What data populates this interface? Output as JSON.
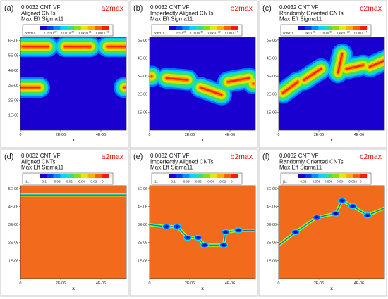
{
  "chart_data": [
    {
      "panel": "(a)",
      "type": "heatmap",
      "row": "top",
      "title_lines": [
        "0.0032 CNT VF",
        "Aligned CNTs",
        "Max Eff Sigma11"
      ],
      "tag": "a2max",
      "legend": {
        "variable": "cond11",
        "labels": [
          "1.0x10^(-37)",
          "1.0x10^(-29)",
          "1.0x10^(-21)",
          "1.0x10^(-13)"
        ]
      },
      "xlabel": "x",
      "x_ticks": [
        "0",
        "2E-06",
        "4E-06"
      ],
      "y_ticks": [
        "1E-06",
        "2E-06",
        "3E-06",
        "4E-06",
        "5E-06",
        "6E-06"
      ],
      "xlim": [
        0,
        5e-06
      ],
      "ylim": [
        0,
        5e-06
      ],
      "cnt_paths": [
        [
          [
            1e-07,
            4.5e-06
          ],
          [
            1.3e-06,
            4.5e-06
          ]
        ],
        [
          [
            2.1e-06,
            4.5e-06
          ],
          [
            3.3e-06,
            4.5e-06
          ]
        ],
        [
          [
            4.1e-06,
            4.5e-06
          ],
          [
            5.3e-06,
            4.5e-06
          ]
        ],
        [
          [
            -2e-07,
            2.3e-06
          ],
          [
            9e-07,
            2.3e-06
          ]
        ],
        [
          [
            4.9e-06,
            2.3e-06
          ],
          [
            6e-06,
            2.3e-06
          ]
        ]
      ]
    },
    {
      "panel": "(b)",
      "type": "heatmap",
      "row": "top",
      "title_lines": [
        "0.0032 CNT VF",
        "Imperfectly Aligned CNTs",
        "Max Eff Sigma11"
      ],
      "tag": "b2max",
      "legend": {
        "variable": "cond11",
        "labels": [
          "1.0x10^(-38)",
          "1.0x10^(-30)",
          "1.0x10^(-22)",
          "1.0x10^(-14)"
        ]
      },
      "xlabel": "x",
      "x_ticks": [
        "0",
        "2E-06",
        "4E-06"
      ],
      "y_ticks": [
        "1E-06",
        "2E-06",
        "3E-06",
        "4E-06",
        "5E-06"
      ],
      "xlim": [
        0,
        5e-06
      ],
      "ylim": [
        0,
        5e-06
      ],
      "cnt_paths": [
        [
          [
            1e-07,
            2.9e-06
          ],
          [
            1e-07,
            2.9e-06
          ]
        ],
        [
          [
            8e-07,
            2.8e-06
          ],
          [
            1.8e-06,
            2.7e-06
          ]
        ],
        [
          [
            2.4e-06,
            2.3e-06
          ],
          [
            3.4e-06,
            1.9e-06
          ]
        ],
        [
          [
            3.7e-06,
            2.6e-06
          ],
          [
            4.7e-06,
            2.8e-06
          ]
        ],
        [
          [
            4.9e-06,
            2.5e-06
          ],
          [
            4.9e-06,
            2.5e-06
          ]
        ]
      ]
    },
    {
      "panel": "(c)",
      "type": "heatmap",
      "row": "top",
      "title_lines": [
        "0.0032 CNT VF",
        "Randomly Oriented CNTs",
        "Max Eff Sigma11"
      ],
      "tag": "c2max",
      "legend": {
        "variable": "cond11",
        "labels": [
          "1.0x10^(-38)",
          "1.0x10^(-30)",
          "1.0x10^(-22)",
          "1.0x10^(-14)"
        ]
      },
      "xlabel": "x",
      "x_ticks": [
        "0",
        "2E-06",
        "4E-06"
      ],
      "y_ticks": [
        "1E-06",
        "2E-06",
        "3E-06",
        "4E-06",
        "5E-06"
      ],
      "xlim": [
        0,
        5e-06
      ],
      "ylim": [
        0,
        5e-06
      ],
      "cnt_paths": [
        [
          [
            2e-07,
            2e-06
          ],
          [
            9e-07,
            2.6e-06
          ]
        ],
        [
          [
            1.2e-06,
            2.7e-06
          ],
          [
            2e-06,
            3.3e-06
          ]
        ],
        [
          [
            2.8e-06,
            3.1e-06
          ],
          [
            3e-06,
            4.1e-06
          ]
        ],
        [
          [
            3.2e-06,
            3.3e-06
          ],
          [
            4e-06,
            3.5e-06
          ]
        ],
        [
          [
            4.3e-06,
            3.4e-06
          ],
          [
            5.1e-06,
            3.8e-06
          ]
        ]
      ]
    },
    {
      "panel": "(d)",
      "type": "heatmap",
      "row": "bottom",
      "title_lines": [
        "0.0032 CNT VF",
        "Aligned CNTs",
        "Max Eff Sigma11"
      ],
      "tag": "a2max",
      "legend": {
        "variable": "j11",
        "labels": [
          "-0.1",
          "-0.08",
          "-0.06",
          "-0.04",
          "-0.02",
          "0"
        ]
      },
      "xlabel": "x",
      "x_ticks": [
        "0",
        "2E-06",
        "4E-06"
      ],
      "y_ticks": [
        "1E-06",
        "2E-06",
        "3E-06",
        "4E-06",
        "5E-06"
      ],
      "xlim": [
        0,
        5e-06
      ],
      "ylim": [
        0,
        5e-06
      ],
      "background_color": "#f26b1d",
      "cnt_paths": [
        [
          [
            0,
            4.5e-06
          ],
          [
            5e-06,
            4.5e-06
          ]
        ]
      ]
    },
    {
      "panel": "(e)",
      "type": "heatmap",
      "row": "bottom",
      "title_lines": [
        "0.0032 CNT VF",
        "Imperfectly Aligned CNTs",
        "Max Eff Sigma11"
      ],
      "tag": "b2max",
      "legend": {
        "variable": "j11",
        "labels": [
          "-0.1",
          "-0.08",
          "-0.06",
          "-0.04",
          "-0.02",
          "0"
        ]
      },
      "xlabel": "x",
      "x_ticks": [
        "0",
        "2E-06",
        "4E-06"
      ],
      "y_ticks": [
        "1E-06",
        "2E-06",
        "3E-06",
        "4E-06",
        "5E-06"
      ],
      "xlim": [
        0,
        5e-06
      ],
      "ylim": [
        0,
        5e-06
      ],
      "background_color": "#f26b1d",
      "cnt_paths": [
        [
          [
            0,
            2.9e-06
          ],
          [
            8e-07,
            2.8e-06
          ],
          [
            1.3e-06,
            2.8e-06
          ],
          [
            1.8e-06,
            2.2e-06
          ],
          [
            2.3e-06,
            2.2e-06
          ],
          [
            2.6e-06,
            1.8e-06
          ],
          [
            3.5e-06,
            1.8e-06
          ],
          [
            3.6e-06,
            2.5e-06
          ],
          [
            4.2e-06,
            2.6e-06
          ],
          [
            5e-06,
            2.6e-06
          ]
        ]
      ]
    },
    {
      "panel": "(f)",
      "type": "heatmap",
      "row": "bottom",
      "title_lines": [
        "0.0032 CNT VF",
        "Randomly Oriented CNTs",
        "Max Eff Sigma11"
      ],
      "tag": "c2max",
      "legend": {
        "variable": "j11",
        "labels": [
          "-0.01",
          "-0.008",
          "-0.006",
          "-0.004",
          "-0.002",
          "0"
        ]
      },
      "xlabel": "x",
      "x_ticks": [
        "0",
        "2E-06",
        "4E-06"
      ],
      "y_ticks": [
        "1E-06",
        "2E-06",
        "3E-06",
        "4E-06",
        "5E-06"
      ],
      "xlim": [
        0,
        5e-06
      ],
      "ylim": [
        0,
        5e-06
      ],
      "background_color": "#f26b1d",
      "cnt_paths": [
        [
          [
            0,
            1.8e-06
          ],
          [
            8e-07,
            2.5e-06
          ],
          [
            1.8e-06,
            3.3e-06
          ],
          [
            2.7e-06,
            3.5e-06
          ],
          [
            3e-06,
            4.2e-06
          ],
          [
            3.5e-06,
            3.9e-06
          ],
          [
            4.2e-06,
            3.4e-06
          ],
          [
            5e-06,
            3.8e-06
          ]
        ]
      ]
    }
  ]
}
